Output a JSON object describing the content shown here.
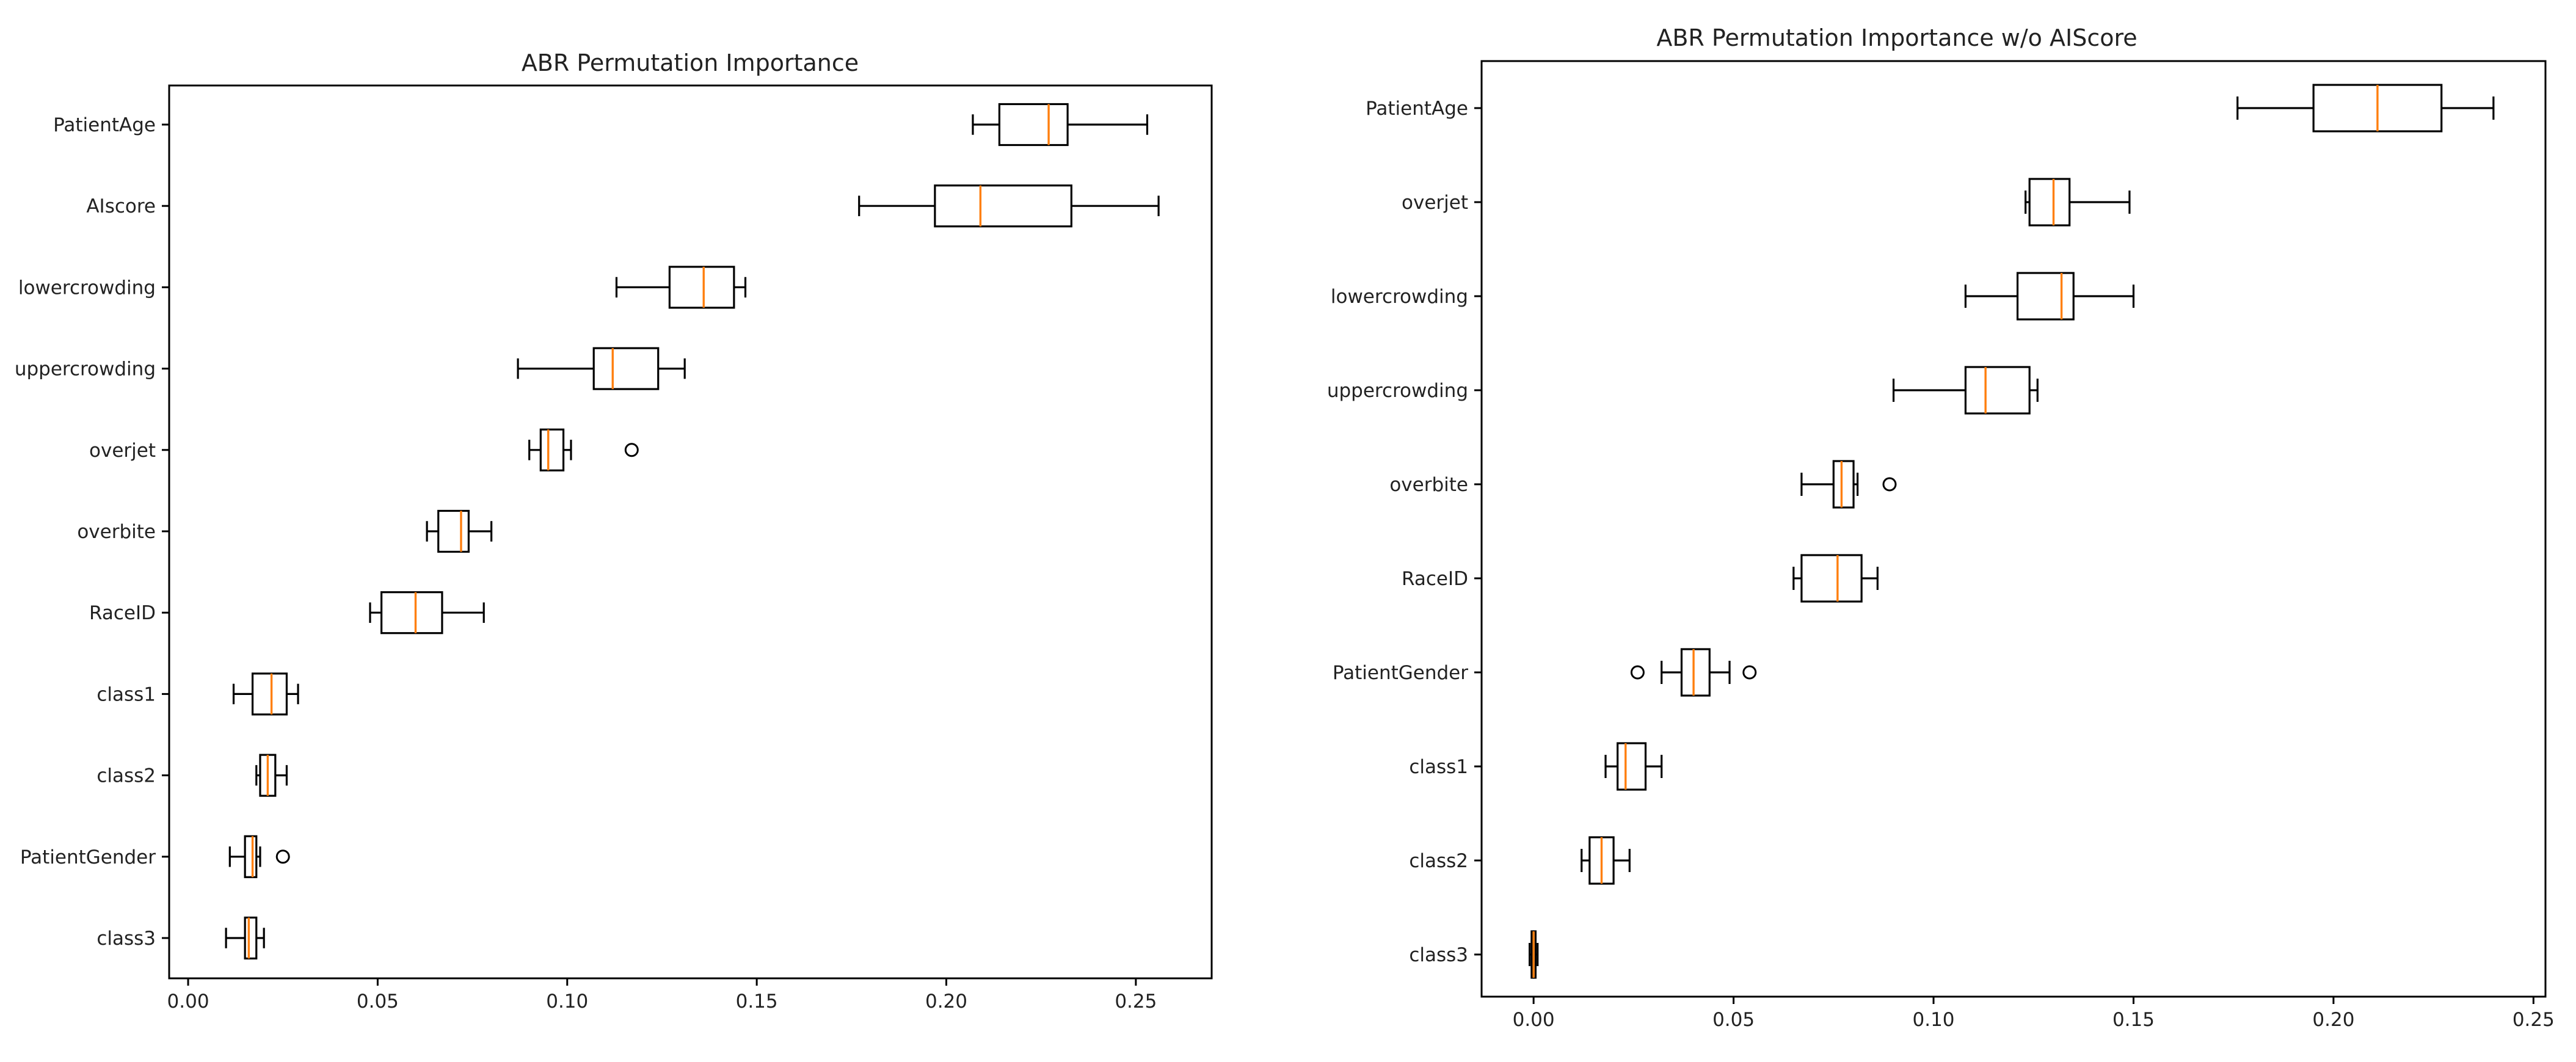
{
  "chart_data": [
    {
      "type": "box",
      "orientation": "horizontal",
      "title": "ABR Permutation Importance",
      "xlabel": "",
      "ylabel": "",
      "xlim": [
        -0.005,
        0.27
      ],
      "xticks": [
        "0.00",
        "0.05",
        "0.10",
        "0.15",
        "0.20",
        "0.25"
      ],
      "xtick_values": [
        0.0,
        0.05,
        0.1,
        0.15,
        0.2,
        0.25
      ],
      "categories": [
        "PatientAge",
        "AIscore",
        "lowercrowding",
        "uppercrowding",
        "overjet",
        "overbite",
        "RaceID",
        "class1",
        "class2",
        "PatientGender",
        "class3"
      ],
      "boxes": [
        {
          "label": "PatientAge",
          "whislo": 0.207,
          "q1": 0.214,
          "med": 0.227,
          "q3": 0.232,
          "whishi": 0.253,
          "fliers": []
        },
        {
          "label": "AIscore",
          "whislo": 0.177,
          "q1": 0.197,
          "med": 0.209,
          "q3": 0.233,
          "whishi": 0.256,
          "fliers": []
        },
        {
          "label": "lowercrowding",
          "whislo": 0.113,
          "q1": 0.127,
          "med": 0.136,
          "q3": 0.144,
          "whishi": 0.147,
          "fliers": []
        },
        {
          "label": "uppercrowding",
          "whislo": 0.087,
          "q1": 0.107,
          "med": 0.112,
          "q3": 0.124,
          "whishi": 0.131,
          "fliers": []
        },
        {
          "label": "overjet",
          "whislo": 0.09,
          "q1": 0.093,
          "med": 0.095,
          "q3": 0.099,
          "whishi": 0.101,
          "fliers": [
            0.117
          ]
        },
        {
          "label": "overbite",
          "whislo": 0.063,
          "q1": 0.066,
          "med": 0.072,
          "q3": 0.074,
          "whishi": 0.08,
          "fliers": []
        },
        {
          "label": "RaceID",
          "whislo": 0.048,
          "q1": 0.051,
          "med": 0.06,
          "q3": 0.067,
          "whishi": 0.078,
          "fliers": []
        },
        {
          "label": "class1",
          "whislo": 0.012,
          "q1": 0.017,
          "med": 0.022,
          "q3": 0.026,
          "whishi": 0.029,
          "fliers": []
        },
        {
          "label": "class2",
          "whislo": 0.018,
          "q1": 0.019,
          "med": 0.021,
          "q3": 0.023,
          "whishi": 0.026,
          "fliers": []
        },
        {
          "label": "PatientGender",
          "whislo": 0.011,
          "q1": 0.015,
          "med": 0.017,
          "q3": 0.018,
          "whishi": 0.019,
          "fliers": [
            0.025
          ]
        },
        {
          "label": "class3",
          "whislo": 0.01,
          "q1": 0.015,
          "med": 0.016,
          "q3": 0.018,
          "whishi": 0.02,
          "fliers": []
        }
      ]
    },
    {
      "type": "box",
      "orientation": "horizontal",
      "title": "ABR Permutation Importance w/o AIScore",
      "xlabel": "",
      "ylabel": "",
      "xlim": [
        -0.013,
        0.253
      ],
      "xticks": [
        "0.00",
        "0.05",
        "0.10",
        "0.15",
        "0.20",
        "0.25"
      ],
      "xtick_values": [
        0.0,
        0.05,
        0.1,
        0.15,
        0.2,
        0.25
      ],
      "categories": [
        "PatientAge",
        "overjet",
        "lowercrowding",
        "uppercrowding",
        "overbite",
        "RaceID",
        "PatientGender",
        "class1",
        "class2",
        "class3"
      ],
      "boxes": [
        {
          "label": "PatientAge",
          "whislo": 0.176,
          "q1": 0.195,
          "med": 0.211,
          "q3": 0.227,
          "whishi": 0.24,
          "fliers": []
        },
        {
          "label": "overjet",
          "whislo": 0.123,
          "q1": 0.124,
          "med": 0.13,
          "q3": 0.134,
          "whishi": 0.149,
          "fliers": []
        },
        {
          "label": "lowercrowding",
          "whislo": 0.108,
          "q1": 0.121,
          "med": 0.132,
          "q3": 0.135,
          "whishi": 0.15,
          "fliers": []
        },
        {
          "label": "uppercrowding",
          "whislo": 0.09,
          "q1": 0.108,
          "med": 0.113,
          "q3": 0.124,
          "whishi": 0.126,
          "fliers": []
        },
        {
          "label": "overbite",
          "whislo": 0.067,
          "q1": 0.075,
          "med": 0.077,
          "q3": 0.08,
          "whishi": 0.081,
          "fliers": [
            0.089
          ]
        },
        {
          "label": "RaceID",
          "whislo": 0.065,
          "q1": 0.067,
          "med": 0.076,
          "q3": 0.082,
          "whishi": 0.086,
          "fliers": []
        },
        {
          "label": "PatientGender",
          "whislo": 0.032,
          "q1": 0.037,
          "med": 0.04,
          "q3": 0.044,
          "whishi": 0.049,
          "fliers": [
            0.026,
            0.054
          ]
        },
        {
          "label": "class1",
          "whislo": 0.018,
          "q1": 0.021,
          "med": 0.023,
          "q3": 0.028,
          "whishi": 0.032,
          "fliers": []
        },
        {
          "label": "class2",
          "whislo": 0.012,
          "q1": 0.014,
          "med": 0.017,
          "q3": 0.02,
          "whishi": 0.024,
          "fliers": []
        },
        {
          "label": "class3",
          "whislo": -0.001,
          "q1": -0.0005,
          "med": 0.0,
          "q3": 0.0005,
          "whishi": 0.001,
          "fliers": []
        }
      ]
    }
  ]
}
